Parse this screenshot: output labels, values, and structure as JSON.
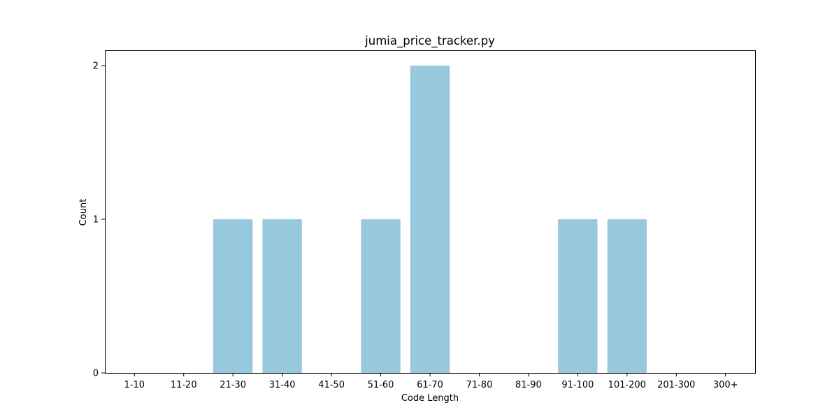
{
  "chart_data": {
    "type": "bar",
    "title": "jumia_price_tracker.py",
    "xlabel": "Code Length",
    "ylabel": "Count",
    "categories": [
      "1-10",
      "11-20",
      "21-30",
      "31-40",
      "41-50",
      "51-60",
      "61-70",
      "71-80",
      "81-90",
      "91-100",
      "101-200",
      "201-300",
      "300+"
    ],
    "values": [
      0,
      0,
      1,
      1,
      0,
      1,
      2,
      0,
      0,
      1,
      1,
      0,
      0
    ],
    "ylim": [
      0,
      2.1
    ],
    "yticks": [
      0,
      1,
      2
    ],
    "grid": false,
    "bar_color": "#96c9dd"
  }
}
